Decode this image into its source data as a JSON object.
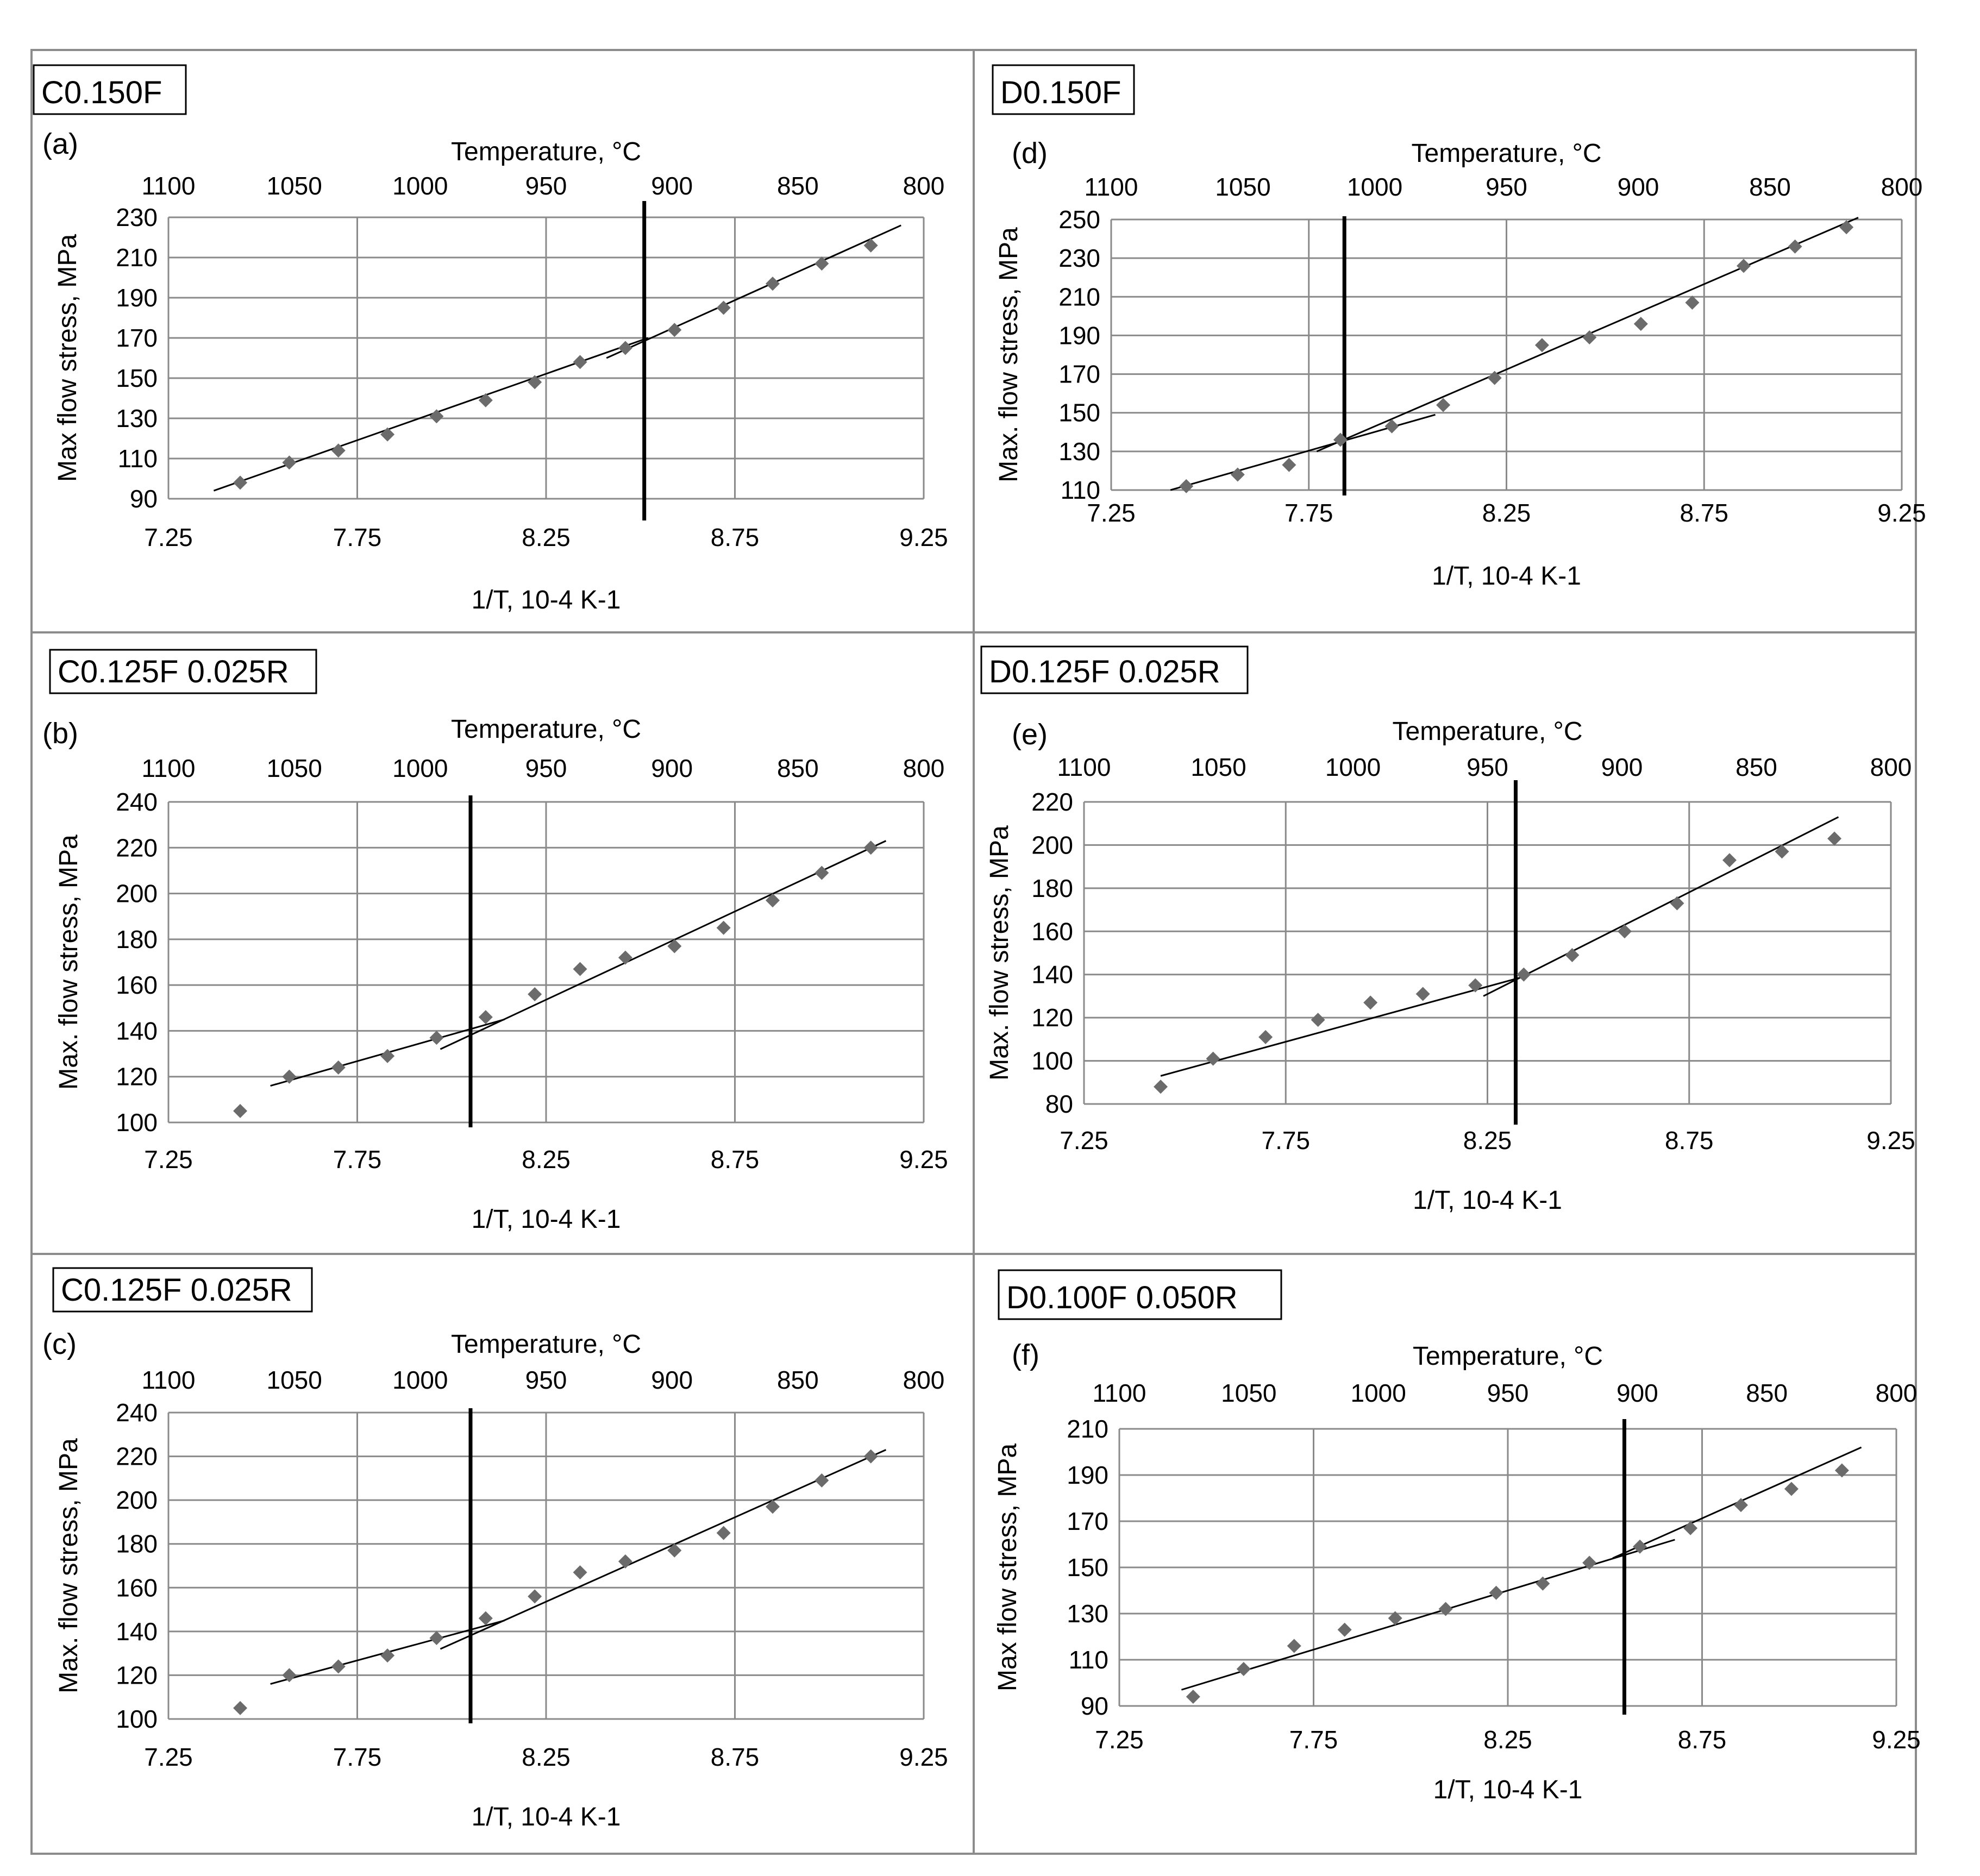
{
  "x_axis_bottom_label": "1/T, 10-4 K-1",
  "x_axis_top_label": "Temperature, °C",
  "x_bottom_ticks": [
    "7.25",
    "7.75",
    "8.25",
    "8.75",
    "9.25"
  ],
  "x_top_ticks": [
    "1100",
    "1050",
    "1000",
    "950",
    "900",
    "850",
    "800"
  ],
  "chart_data": [
    {
      "id": "a",
      "panel_label": "(a)",
      "tag": "C0.150F",
      "type": "scatter",
      "ylabel": "Max flow stress, MPa",
      "ylim": [
        90,
        230
      ],
      "yticks": [
        "90",
        "110",
        "130",
        "150",
        "170",
        "190",
        "210",
        "230"
      ],
      "xlim": [
        7.25,
        9.25
      ],
      "transition_x": 8.51,
      "x": [
        7.44,
        7.57,
        7.7,
        7.83,
        7.96,
        8.09,
        8.22,
        8.34,
        8.46,
        8.59,
        8.72,
        8.85,
        8.98,
        9.11
      ],
      "y": [
        98,
        108,
        114,
        122,
        131,
        139,
        148,
        158,
        165,
        174,
        185,
        197,
        207,
        216
      ],
      "fit_lines": [
        {
          "x": [
            7.37,
            8.52
          ],
          "y": [
            94,
            170
          ]
        },
        {
          "x": [
            8.41,
            9.19
          ],
          "y": [
            160,
            226
          ]
        }
      ]
    },
    {
      "id": "b",
      "panel_label": "(b)",
      "tag": "C0.125F 0.025R",
      "type": "scatter",
      "ylabel": "Max. flow stress, MPa",
      "ylim": [
        100,
        240
      ],
      "yticks": [
        "100",
        "120",
        "140",
        "160",
        "180",
        "200",
        "220",
        "240"
      ],
      "xlim": [
        7.25,
        9.25
      ],
      "transition_x": 8.05,
      "x": [
        7.44,
        7.57,
        7.7,
        7.83,
        7.96,
        8.09,
        8.22,
        8.34,
        8.46,
        8.59,
        8.72,
        8.85,
        8.98,
        9.11
      ],
      "y": [
        105,
        120,
        124,
        129,
        137,
        146,
        156,
        167,
        172,
        177,
        185,
        197,
        209,
        220
      ],
      "fit_lines": [
        {
          "x": [
            7.52,
            8.14
          ],
          "y": [
            116,
            145
          ]
        },
        {
          "x": [
            7.97,
            9.15
          ],
          "y": [
            132,
            223
          ]
        }
      ]
    },
    {
      "id": "c",
      "panel_label": "(c)",
      "tag": "C0.125F 0.025R",
      "type": "scatter",
      "ylabel": "Max. flow stress, MPa",
      "ylim": [
        100,
        240
      ],
      "yticks": [
        "100",
        "120",
        "140",
        "160",
        "180",
        "200",
        "220",
        "240"
      ],
      "xlim": [
        7.25,
        9.25
      ],
      "transition_x": 8.05,
      "x": [
        7.44,
        7.57,
        7.7,
        7.83,
        7.96,
        8.09,
        8.22,
        8.34,
        8.46,
        8.59,
        8.72,
        8.85,
        8.98,
        9.11
      ],
      "y": [
        105,
        120,
        124,
        129,
        137,
        146,
        156,
        167,
        172,
        177,
        185,
        197,
        209,
        220
      ],
      "fit_lines": [
        {
          "x": [
            7.52,
            8.14
          ],
          "y": [
            116,
            145
          ]
        },
        {
          "x": [
            7.97,
            9.15
          ],
          "y": [
            132,
            223
          ]
        }
      ]
    },
    {
      "id": "d",
      "panel_label": "(d)",
      "tag": "D0.150F",
      "type": "scatter",
      "ylabel": "Max. flow stress, MPa",
      "ylim": [
        110,
        250
      ],
      "yticks": [
        "110",
        "130",
        "150",
        "170",
        "190",
        "210",
        "230",
        "250"
      ],
      "xlim": [
        7.25,
        9.25
      ],
      "transition_x": 7.84,
      "x": [
        7.44,
        7.57,
        7.7,
        7.83,
        7.96,
        8.09,
        8.22,
        8.34,
        8.46,
        8.59,
        8.72,
        8.85,
        8.98,
        9.11
      ],
      "y": [
        112,
        118,
        123,
        136,
        143,
        154,
        168,
        185,
        189,
        196,
        207,
        226,
        236,
        246
      ],
      "fit_lines": [
        {
          "x": [
            7.4,
            8.07
          ],
          "y": [
            110,
            149
          ]
        },
        {
          "x": [
            7.77,
            9.14
          ],
          "y": [
            130,
            251
          ]
        }
      ]
    },
    {
      "id": "e",
      "panel_label": "(e)",
      "tag": "D0.125F 0.025R",
      "type": "scatter",
      "ylabel": "Max. flow stress, MPa",
      "ylim": [
        80,
        220
      ],
      "yticks": [
        "80",
        "100",
        "120",
        "140",
        "160",
        "180",
        "200",
        "220"
      ],
      "xlim": [
        7.25,
        9.25
      ],
      "transition_x": 8.32,
      "x": [
        7.44,
        7.57,
        7.7,
        7.83,
        7.96,
        8.09,
        8.22,
        8.34,
        8.46,
        8.59,
        8.72,
        8.85,
        8.98,
        9.11
      ],
      "y": [
        88,
        101,
        111,
        119,
        127,
        131,
        135,
        140,
        149,
        160,
        173,
        193,
        197,
        203
      ],
      "fit_lines": [
        {
          "x": [
            7.44,
            8.34
          ],
          "y": [
            93,
            139
          ]
        },
        {
          "x": [
            8.24,
            9.12
          ],
          "y": [
            130,
            213
          ]
        }
      ]
    },
    {
      "id": "f",
      "panel_label": "(f)",
      "tag": "D0.100F 0.050R",
      "type": "scatter",
      "ylabel": "Max flow stress, MPa",
      "ylim": [
        90,
        210
      ],
      "yticks": [
        "90",
        "110",
        "130",
        "150",
        "170",
        "190",
        "210"
      ],
      "xlim": [
        7.25,
        9.25
      ],
      "transition_x": 8.55,
      "x": [
        7.44,
        7.57,
        7.7,
        7.83,
        7.96,
        8.09,
        8.22,
        8.34,
        8.46,
        8.59,
        8.72,
        8.85,
        8.98,
        9.11
      ],
      "y": [
        94,
        106,
        116,
        123,
        128,
        132,
        139,
        143,
        152,
        159,
        167,
        177,
        184,
        192
      ],
      "fit_lines": [
        {
          "x": [
            7.41,
            8.68
          ],
          "y": [
            97,
            162
          ]
        },
        {
          "x": [
            8.52,
            9.16
          ],
          "y": [
            154,
            202
          ]
        }
      ]
    }
  ]
}
